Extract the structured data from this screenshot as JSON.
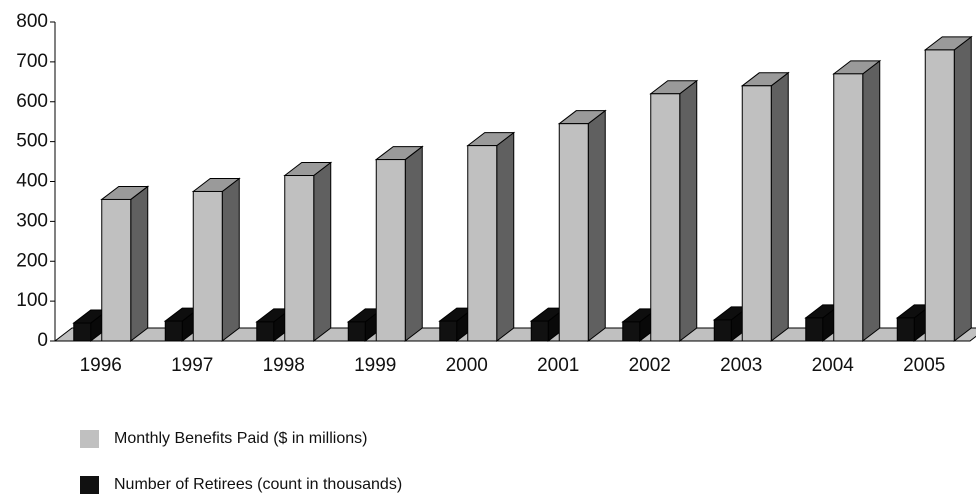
{
  "chart_data": {
    "type": "bar3d",
    "categories": [
      "1996",
      "1997",
      "1998",
      "1999",
      "2000",
      "2001",
      "2002",
      "2003",
      "2004",
      "2005"
    ],
    "series": [
      {
        "name": "Monthly Benefits Paid ($ in millions)",
        "color": "#c0c0c0",
        "values": [
          355,
          375,
          415,
          455,
          490,
          545,
          620,
          640,
          670,
          730
        ]
      },
      {
        "name": "Number of Retirees (count in thousands)",
        "color": "#111111",
        "values": [
          45,
          50,
          48,
          48,
          50,
          50,
          48,
          53,
          58,
          58
        ]
      }
    ],
    "ylim": [
      0,
      800
    ],
    "yticks": [
      0,
      100,
      200,
      300,
      400,
      500,
      600,
      700,
      800
    ],
    "grid": false
  }
}
